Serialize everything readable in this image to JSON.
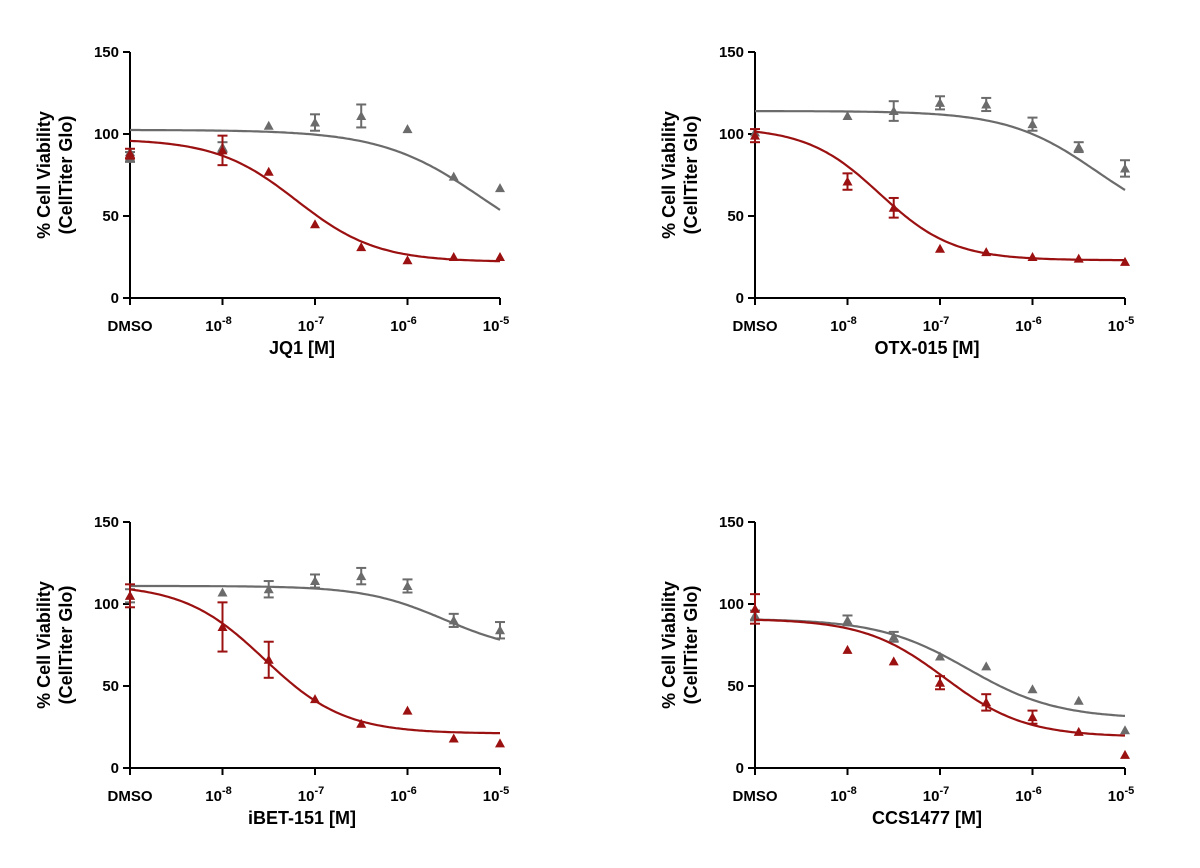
{
  "colors": {
    "gray": "#6b6b6b",
    "red": "#9b1111",
    "axis": "#000000"
  },
  "chart_data": [
    {
      "type": "scatter",
      "xlabel": "JQ1 [M]",
      "ylabel_lines": [
        "% Cell Viability",
        "(CellTiter Glo)"
      ],
      "ylim": [
        0,
        150
      ],
      "yticks": [
        0,
        50,
        100,
        150
      ],
      "x_scale": "log10",
      "xticks": [
        {
          "label": "DMSO",
          "base": "",
          "exp": "",
          "value": "DMSO"
        },
        {
          "label": "",
          "base": "10",
          "exp": "-8",
          "value": 1e-08
        },
        {
          "label": "",
          "base": "10",
          "exp": "-7",
          "value": 1e-07
        },
        {
          "label": "",
          "base": "10",
          "exp": "-6",
          "value": 1e-06
        },
        {
          "label": "",
          "base": "10",
          "exp": "-5",
          "value": 1e-05
        }
      ],
      "series": [
        {
          "color": "gray",
          "points": [
            {
              "x": "DMSO",
              "y": 86,
              "err": 3
            },
            {
              "x": "DMSO",
              "y": 89,
              "err": 0
            },
            {
              "x": 1e-08,
              "y": 92,
              "err": 3
            },
            {
              "x": 3.16e-08,
              "y": 105,
              "err": 0
            },
            {
              "x": 1e-07,
              "y": 107,
              "err": 5
            },
            {
              "x": 3.16e-07,
              "y": 111,
              "err": 7
            },
            {
              "x": 1e-06,
              "y": 103,
              "err": 0
            },
            {
              "x": 3.16e-06,
              "y": 74,
              "err": 0
            },
            {
              "x": 1e-05,
              "y": 67,
              "err": 0
            }
          ],
          "fit": {
            "top": 102.5,
            "bottom": 20,
            "logIC50": -5.2,
            "hill": 0.8
          }
        },
        {
          "color": "red",
          "points": [
            {
              "x": "DMSO",
              "y": 88,
              "err": 3
            },
            {
              "x": 1e-08,
              "y": 90,
              "err": 9
            },
            {
              "x": 3.16e-08,
              "y": 77,
              "err": 0
            },
            {
              "x": 1e-07,
              "y": 45,
              "err": 0
            },
            {
              "x": 3.16e-07,
              "y": 31,
              "err": 0
            },
            {
              "x": 1e-06,
              "y": 23,
              "err": 0
            },
            {
              "x": 3.16e-06,
              "y": 25,
              "err": 0
            },
            {
              "x": 1e-05,
              "y": 25,
              "err": 0
            }
          ],
          "fit": {
            "top": 97,
            "bottom": 22,
            "logIC50": -7.2,
            "hill": 1.0
          }
        }
      ]
    },
    {
      "type": "scatter",
      "xlabel": "OTX-015 [M]",
      "ylabel_lines": [
        "% Cell Viability",
        "(CellTiter Glo)"
      ],
      "ylim": [
        0,
        150
      ],
      "yticks": [
        0,
        50,
        100,
        150
      ],
      "x_scale": "log10",
      "xticks": [
        {
          "label": "DMSO",
          "base": "",
          "exp": "",
          "value": "DMSO"
        },
        {
          "label": "",
          "base": "10",
          "exp": "-8",
          "value": 1e-08
        },
        {
          "label": "",
          "base": "10",
          "exp": "-7",
          "value": 1e-07
        },
        {
          "label": "",
          "base": "10",
          "exp": "-6",
          "value": 1e-06
        },
        {
          "label": "",
          "base": "10",
          "exp": "-5",
          "value": 1e-05
        }
      ],
      "series": [
        {
          "color": "gray",
          "points": [
            {
              "x": "DMSO",
              "y": 101,
              "err": 0
            },
            {
              "x": 1e-08,
              "y": 111,
              "err": 0
            },
            {
              "x": 3.16e-08,
              "y": 114,
              "err": 6
            },
            {
              "x": 1e-07,
              "y": 119,
              "err": 4
            },
            {
              "x": 3.16e-07,
              "y": 118,
              "err": 4
            },
            {
              "x": 1e-06,
              "y": 106,
              "err": 4
            },
            {
              "x": 3.16e-06,
              "y": 92,
              "err": 3
            },
            {
              "x": 1e-05,
              "y": 79,
              "err": 5
            }
          ],
          "fit": {
            "top": 114,
            "bottom": 40,
            "logIC50": -5.3,
            "hill": 0.9
          }
        },
        {
          "color": "red",
          "points": [
            {
              "x": "DMSO",
              "y": 99,
              "err": 4
            },
            {
              "x": 1e-08,
              "y": 71,
              "err": 5
            },
            {
              "x": 3.16e-08,
              "y": 55,
              "err": 6
            },
            {
              "x": 1e-07,
              "y": 30,
              "err": 0
            },
            {
              "x": 3.16e-07,
              "y": 28,
              "err": 0
            },
            {
              "x": 1e-06,
              "y": 25,
              "err": 0
            },
            {
              "x": 3.16e-06,
              "y": 24,
              "err": 0
            },
            {
              "x": 1e-05,
              "y": 22,
              "err": 0
            }
          ],
          "fit": {
            "top": 104,
            "bottom": 23,
            "logIC50": -7.65,
            "hill": 1.1
          }
        }
      ]
    },
    {
      "type": "scatter",
      "xlabel": "iBET-151 [M]",
      "ylabel_lines": [
        "% Cell Viability",
        "(CellTiter Glo)"
      ],
      "ylim": [
        0,
        150
      ],
      "yticks": [
        0,
        50,
        100,
        150
      ],
      "x_scale": "log10",
      "xticks": [
        {
          "label": "DMSO",
          "base": "",
          "exp": "",
          "value": "DMSO"
        },
        {
          "label": "",
          "base": "10",
          "exp": "-8",
          "value": 1e-08
        },
        {
          "label": "",
          "base": "10",
          "exp": "-7",
          "value": 1e-07
        },
        {
          "label": "",
          "base": "10",
          "exp": "-6",
          "value": 1e-06
        },
        {
          "label": "",
          "base": "10",
          "exp": "-5",
          "value": 1e-05
        }
      ],
      "series": [
        {
          "color": "gray",
          "points": [
            {
              "x": "DMSO",
              "y": 105,
              "err": 4
            },
            {
              "x": 1e-08,
              "y": 107,
              "err": 0
            },
            {
              "x": 3.16e-08,
              "y": 109,
              "err": 5
            },
            {
              "x": 1e-07,
              "y": 114,
              "err": 4
            },
            {
              "x": 3.16e-07,
              "y": 117,
              "err": 5
            },
            {
              "x": 1e-06,
              "y": 111,
              "err": 4
            },
            {
              "x": 3.16e-06,
              "y": 90,
              "err": 4
            },
            {
              "x": 1e-05,
              "y": 84,
              "err": 5
            }
          ],
          "fit": {
            "top": 111,
            "bottom": 70,
            "logIC50": -5.6,
            "hill": 1.0
          }
        },
        {
          "color": "red",
          "points": [
            {
              "x": "DMSO",
              "y": 105,
              "err": 7
            },
            {
              "x": 1e-08,
              "y": 86,
              "err": 15
            },
            {
              "x": 3.16e-08,
              "y": 66,
              "err": 11
            },
            {
              "x": 1e-07,
              "y": 42,
              "err": 0
            },
            {
              "x": 3.16e-07,
              "y": 27,
              "err": 0
            },
            {
              "x": 1e-06,
              "y": 35,
              "err": 0
            },
            {
              "x": 3.16e-06,
              "y": 18,
              "err": 0
            },
            {
              "x": 1e-05,
              "y": 15,
              "err": 0
            }
          ],
          "fit": {
            "top": 112,
            "bottom": 21,
            "logIC50": -7.55,
            "hill": 1.0
          }
        }
      ]
    },
    {
      "type": "scatter",
      "xlabel": "CCS1477 [M]",
      "ylabel_lines": [
        "% Cell Viability",
        "(CellTiter Glo)"
      ],
      "ylim": [
        0,
        150
      ],
      "yticks": [
        0,
        50,
        100,
        150
      ],
      "x_scale": "log10",
      "xticks": [
        {
          "label": "DMSO",
          "base": "",
          "exp": "",
          "value": "DMSO"
        },
        {
          "label": "",
          "base": "10",
          "exp": "-8",
          "value": 1e-08
        },
        {
          "label": "",
          "base": "10",
          "exp": "-7",
          "value": 1e-07
        },
        {
          "label": "",
          "base": "10",
          "exp": "-6",
          "value": 1e-06
        },
        {
          "label": "",
          "base": "10",
          "exp": "-5",
          "value": 1e-05
        }
      ],
      "series": [
        {
          "color": "gray",
          "points": [
            {
              "x": "DMSO",
              "y": 93,
              "err": 3
            },
            {
              "x": 1e-08,
              "y": 90,
              "err": 3
            },
            {
              "x": 3.16e-08,
              "y": 80,
              "err": 3
            },
            {
              "x": 1e-07,
              "y": 68,
              "err": 0
            },
            {
              "x": 3.16e-07,
              "y": 62,
              "err": 0
            },
            {
              "x": 1e-06,
              "y": 48,
              "err": 0
            },
            {
              "x": 3.16e-06,
              "y": 41,
              "err": 0
            },
            {
              "x": 1e-05,
              "y": 23,
              "err": 0
            }
          ],
          "fit": {
            "top": 91,
            "bottom": 30,
            "logIC50": -6.7,
            "hill": 0.9
          }
        },
        {
          "color": "red",
          "points": [
            {
              "x": "DMSO",
              "y": 97,
              "err": 9
            },
            {
              "x": 1e-08,
              "y": 72,
              "err": 0
            },
            {
              "x": 3.16e-08,
              "y": 65,
              "err": 0
            },
            {
              "x": 1e-07,
              "y": 52,
              "err": 4
            },
            {
              "x": 3.16e-07,
              "y": 40,
              "err": 5
            },
            {
              "x": 1e-06,
              "y": 31,
              "err": 4
            },
            {
              "x": 3.16e-06,
              "y": 22,
              "err": 0
            },
            {
              "x": 1e-05,
              "y": 8,
              "err": 0
            }
          ],
          "fit": {
            "top": 91,
            "bottom": 19,
            "logIC50": -6.95,
            "hill": 1.0
          }
        }
      ]
    }
  ]
}
